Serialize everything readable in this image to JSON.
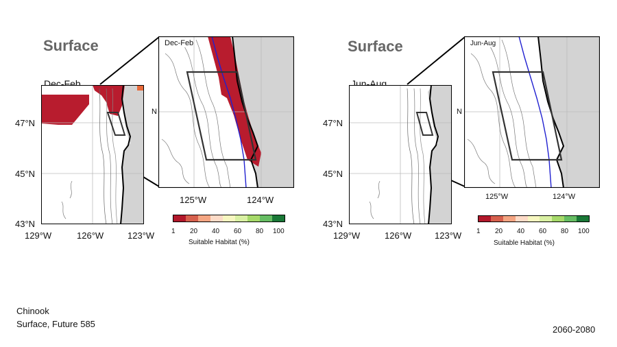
{
  "panels": [
    {
      "title": "Surface",
      "season": "Dec-Feb",
      "inset_season": "Dec-Feb",
      "main_lat_ticks": [
        "47°N",
        "45°N",
        "43°N"
      ],
      "main_lon_ticks": [
        "129°W",
        "126°W",
        "123°W"
      ],
      "inset_lon_ticks": [
        "125°W",
        "124°W"
      ],
      "inset_lat_tick": "N"
    },
    {
      "title": "Surface",
      "season": "Jun-Aug",
      "inset_season": "Jun-Aug",
      "main_lat_ticks": [
        "47°N",
        "45°N",
        "43°N"
      ],
      "main_lon_ticks": [
        "129°W",
        "126°W",
        "123°W"
      ],
      "inset_lon_ticks": [
        "125°W",
        "124°W"
      ],
      "inset_lat_tick": "N"
    }
  ],
  "colorbar": {
    "label": "Suitable Habitat (%)",
    "ticks": [
      "1",
      "20",
      "40",
      "60",
      "80",
      "100"
    ],
    "colors": [
      "#b2182b",
      "#d6604d",
      "#f4a582",
      "#fddbc7",
      "#f7f7c0",
      "#d9f0a3",
      "#a6d96a",
      "#66bd63",
      "#1a9850"
    ]
  },
  "footer": {
    "species": "Chinook",
    "scenario": "Surface, Future 585",
    "period": "2060-2080"
  },
  "colors": {
    "land": "#d3d3d3",
    "habitat_low": "#b81c2e",
    "current_line": "#2020d0"
  }
}
